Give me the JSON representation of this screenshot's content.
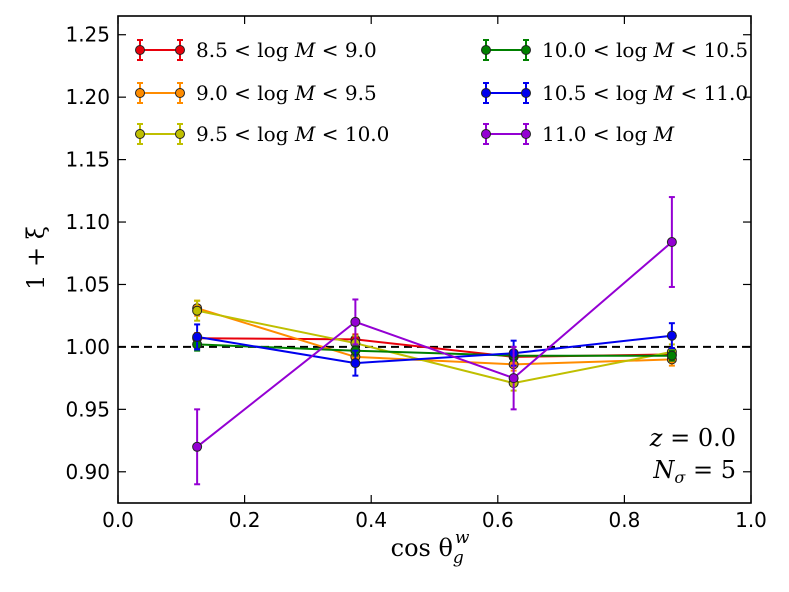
{
  "chart_data": {
    "type": "line",
    "title": "",
    "xlabel": "cos θ_g^w",
    "ylabel": "1 + ξ",
    "xlim": [
      0.0,
      1.0
    ],
    "ylim": [
      0.875,
      1.265
    ],
    "xticks": [
      0.0,
      0.2,
      0.4,
      0.6,
      0.8,
      1.0
    ],
    "xtick_labels": [
      "0.0",
      "0.2",
      "0.4",
      "0.6",
      "0.8",
      "1.0"
    ],
    "yticks": [
      0.9,
      0.95,
      1.0,
      1.05,
      1.1,
      1.15,
      1.2,
      1.25
    ],
    "ytick_labels": [
      "0.90",
      "0.95",
      "1.00",
      "1.05",
      "1.10",
      "1.15",
      "1.20",
      "1.25"
    ],
    "reference_line": {
      "y": 1.0,
      "style": "dashed",
      "color": "#000000"
    },
    "legend_position": "top",
    "x": [
      0.125,
      0.375,
      0.625,
      0.875
    ],
    "series": [
      {
        "name": "8.5 <log M <9.0",
        "color": "#e8000b",
        "values": [
          1.007,
          1.006,
          0.992,
          0.994
        ],
        "errors": [
          0.004,
          0.004,
          0.004,
          0.005
        ]
      },
      {
        "name": "9.0 <log M <9.5",
        "color": "#ff8c00",
        "values": [
          1.031,
          0.992,
          0.986,
          0.99
        ],
        "errors": [
          0.006,
          0.005,
          0.005,
          0.005
        ]
      },
      {
        "name": "9.5 <log M <10.0",
        "color": "#bfbf00",
        "values": [
          1.029,
          1.003,
          0.971,
          0.996
        ],
        "errors": [
          0.008,
          0.006,
          0.006,
          0.006
        ]
      },
      {
        "name": "10.0 <log M <10.5",
        "color": "#008000",
        "values": [
          1.002,
          0.997,
          0.993,
          0.993
        ],
        "errors": [
          0.005,
          0.004,
          0.004,
          0.004
        ]
      },
      {
        "name": "10.5 <log M <11.0",
        "color": "#0000ee",
        "values": [
          1.008,
          0.987,
          0.995,
          1.009
        ],
        "errors": [
          0.01,
          0.01,
          0.01,
          0.01
        ]
      },
      {
        "name": "11.0 <log M",
        "color": "#9400d3",
        "values": [
          0.92,
          1.02,
          0.975,
          1.084
        ],
        "errors": [
          0.03,
          0.018,
          0.025,
          0.036
        ]
      }
    ],
    "legend_parts": [
      {
        "lo": "8.5",
        "hi": "9.0"
      },
      {
        "lo": "9.0",
        "hi": "9.5"
      },
      {
        "lo": "9.5",
        "hi": "10.0"
      },
      {
        "lo": "10.0",
        "hi": "10.5"
      },
      {
        "lo": "10.5",
        "hi": "11.0"
      },
      {
        "lo": "11.0",
        "hi": ""
      }
    ],
    "annotations": {
      "z_label": "z",
      "z_value": "0.0",
      "n_label": "N",
      "n_sub": "σ",
      "n_value": "5"
    },
    "axis_text": {
      "x_main": "cos θ",
      "x_sub": "g",
      "x_sup": "w",
      "y_main": "1 + ξ"
    }
  }
}
